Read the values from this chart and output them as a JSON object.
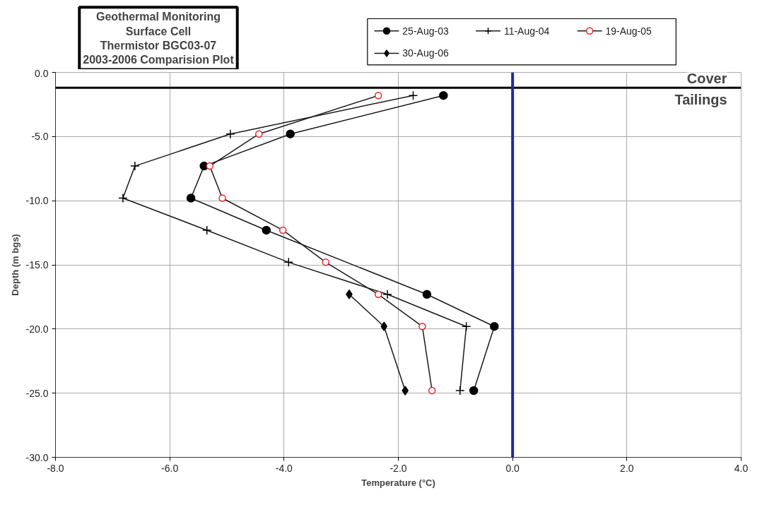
{
  "chart_data": {
    "type": "line",
    "title": "Geothermal Monitoring\nSurface Cell\nThermistor BGC03-07\n2003-2006 Comparision Plot",
    "xlabel": "Temperature (°C)",
    "ylabel": "Depth (m bgs)",
    "xlim": [
      -8,
      4
    ],
    "xticks": [
      {
        "value": -8,
        "label": "-8.0"
      },
      {
        "value": -6,
        "label": "-6.0"
      },
      {
        "value": -4,
        "label": "-4.0"
      },
      {
        "value": -2,
        "label": "-2.0"
      },
      {
        "value": 0,
        "label": "0.0"
      },
      {
        "value": 2,
        "label": "2.0"
      },
      {
        "value": 4,
        "label": "4.0"
      }
    ],
    "ylim": [
      -30,
      0
    ],
    "yticks": [
      {
        "value": -30,
        "label": "-30.0"
      },
      {
        "value": -25,
        "label": "-25.0"
      },
      {
        "value": -20,
        "label": "-20.0"
      },
      {
        "value": -15,
        "label": "-15.0"
      },
      {
        "value": -10,
        "label": "-10.0"
      },
      {
        "value": -5,
        "label": "-5.0"
      },
      {
        "value": 0,
        "label": "0.0"
      }
    ],
    "grid": true,
    "legend": "top",
    "line_style": "solid",
    "series": [
      {
        "name": "25-Aug-03",
        "color": "#000000",
        "marker": "circle",
        "x": [
          -1.21,
          -3.89,
          -5.4,
          -5.63,
          -4.31,
          -1.5,
          -0.32,
          -0.68
        ],
        "values": [
          -1.8,
          -4.8,
          -7.3,
          -9.8,
          -12.3,
          -17.3,
          -19.8,
          -24.8
        ]
      },
      {
        "name": "11-Aug-04",
        "color": "#000000",
        "marker": "cross",
        "x": [
          -1.74,
          -4.94,
          -6.61,
          -6.82,
          -5.35,
          -3.92,
          -2.19,
          -0.81,
          -0.92
        ],
        "values": [
          -1.8,
          -4.8,
          -7.3,
          -9.8,
          -12.3,
          -14.8,
          -17.3,
          -19.8,
          -24.8
        ]
      },
      {
        "name": "19-Aug-05",
        "color": "#e8202a",
        "marker": "circle_open",
        "x": [
          -2.35,
          -4.44,
          -5.3,
          -5.08,
          -4.02,
          -3.27,
          -2.35,
          -1.58,
          -1.41
        ],
        "values": [
          -1.8,
          -4.8,
          -7.3,
          -9.8,
          -12.3,
          -14.8,
          -17.3,
          -19.8,
          -24.8
        ]
      },
      {
        "name": "30-Aug-06",
        "color": "#000000",
        "marker": "diamond",
        "x": [
          -2.86,
          -2.25,
          -1.88
        ],
        "values": [
          -17.3,
          -19.8,
          -24.8
        ]
      }
    ],
    "ref_lines": [
      {
        "axis": "y",
        "value": -1.2,
        "color": "#000000"
      },
      {
        "axis": "x",
        "value": 0,
        "color": "#1f2a9c"
      }
    ],
    "annotations": [
      "Cover",
      "Tailings"
    ]
  }
}
